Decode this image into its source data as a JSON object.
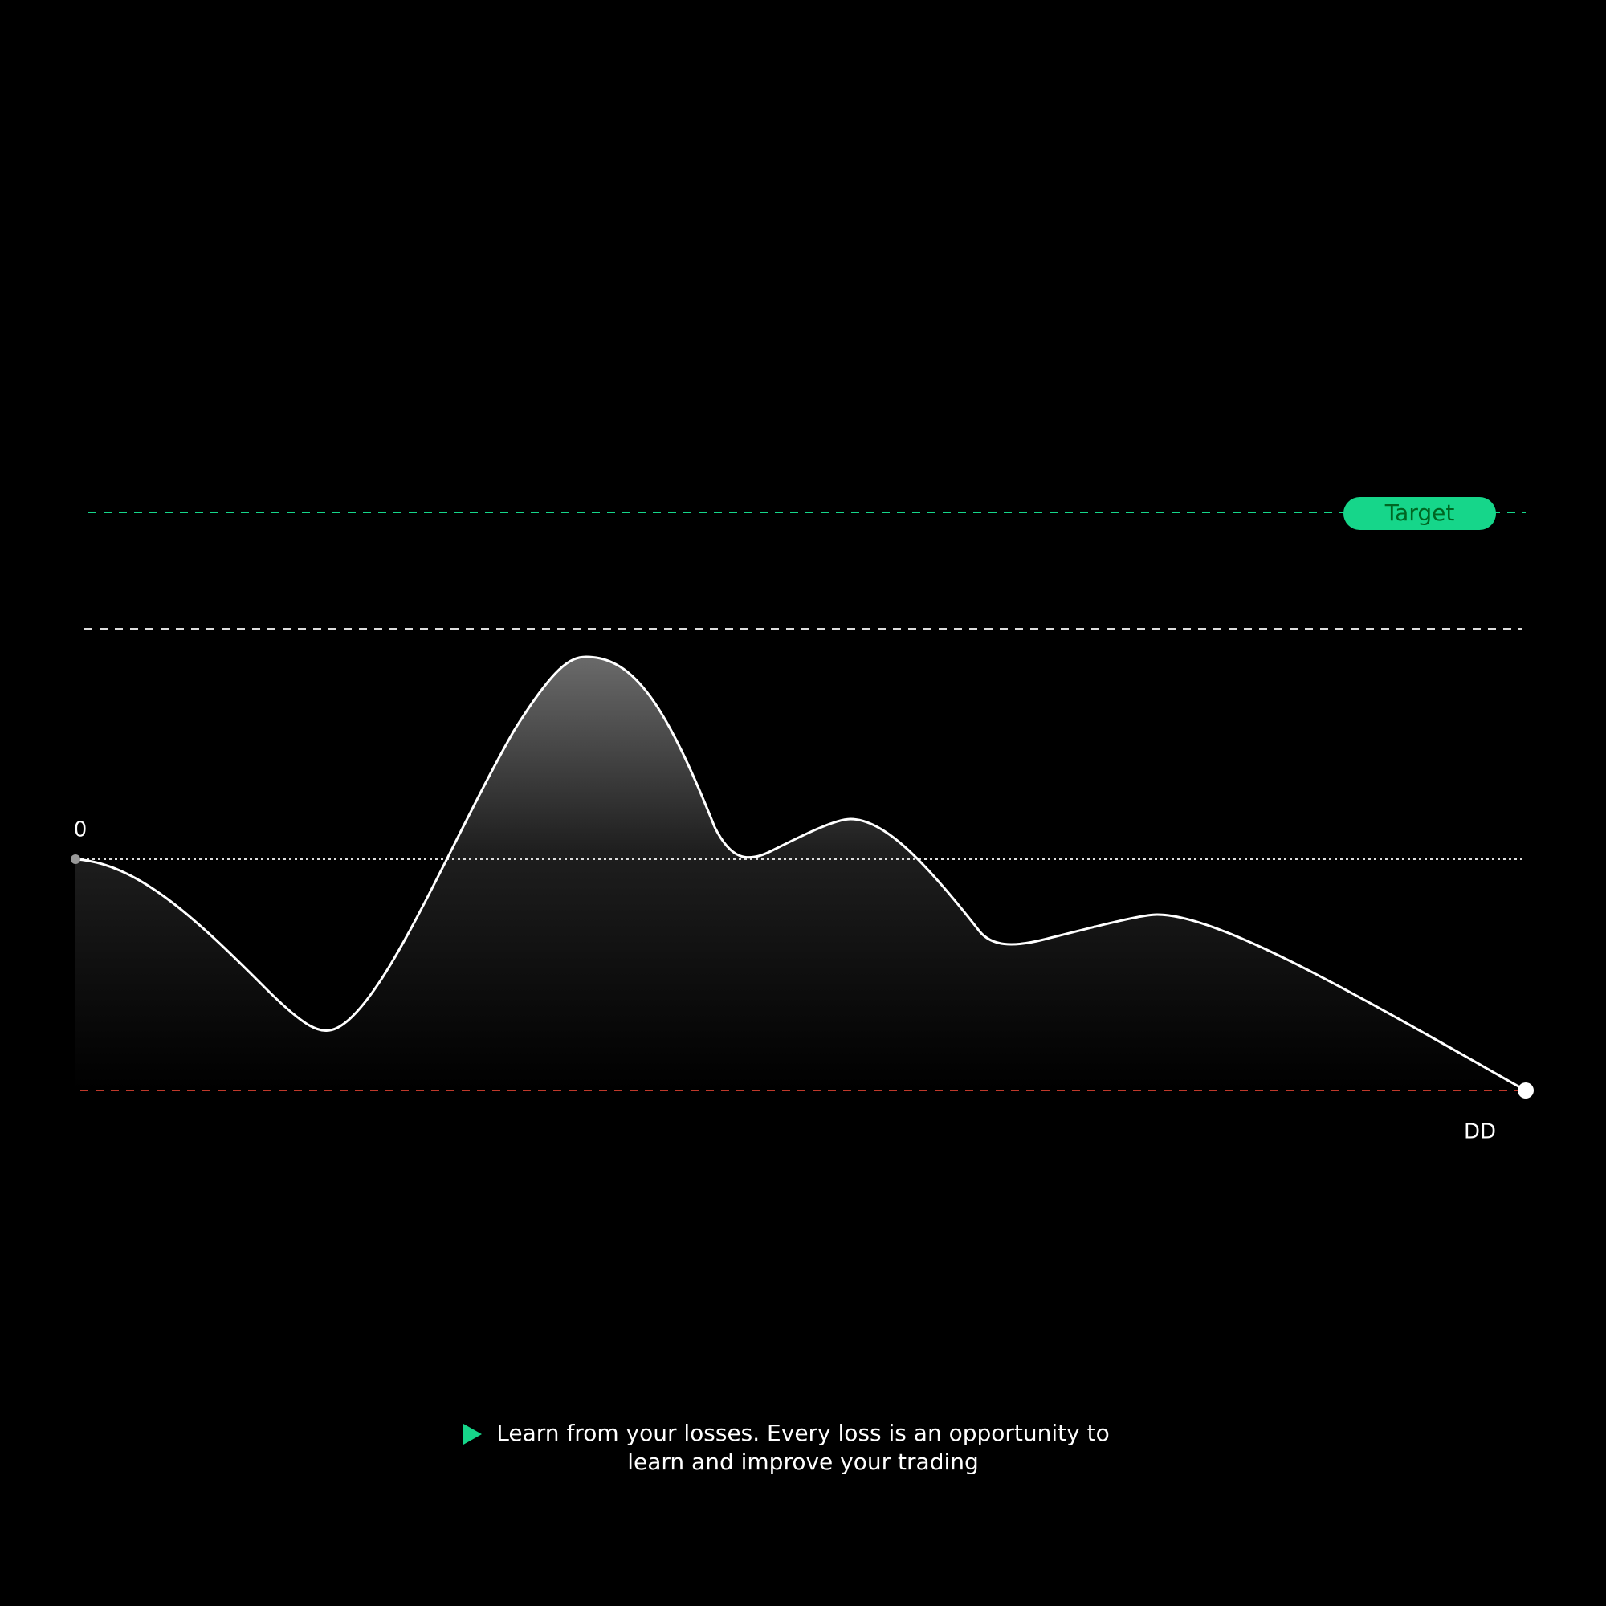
{
  "chart": {
    "zero_label": "0",
    "drawdown_label": "DD",
    "target_label": "Target"
  },
  "caption": {
    "lines": [
      "Learn from your losses. Every loss is an opportunity to",
      "learn and improve your trading"
    ]
  }
}
